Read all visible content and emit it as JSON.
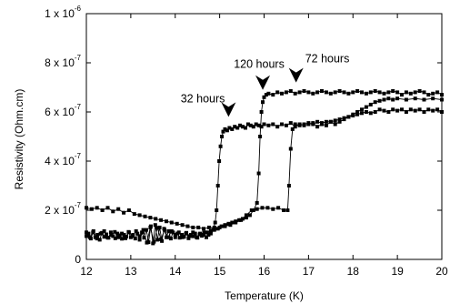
{
  "chart_data": {
    "type": "scatter",
    "title": "",
    "xlabel": "Temperature (K)",
    "ylabel": "Resistivity (Ohm.cm)",
    "xlim": [
      12,
      20
    ],
    "ylim": [
      0,
      1e-06
    ],
    "x_ticks": [
      12,
      13,
      14,
      15,
      16,
      17,
      18,
      19,
      20
    ],
    "x_tick_labels": [
      "12",
      "13",
      "14",
      "15",
      "16",
      "17",
      "18",
      "19",
      "20"
    ],
    "y_ticks": [
      {
        "value": 0,
        "mantissa": "0",
        "exponent": ""
      },
      {
        "value": 2e-07,
        "mantissa": "2 x 10",
        "exponent": "-7"
      },
      {
        "value": 4e-07,
        "mantissa": "4 x 10",
        "exponent": "-7"
      },
      {
        "value": 6e-07,
        "mantissa": "6 x 10",
        "exponent": "-7"
      },
      {
        "value": 8e-07,
        "mantissa": "8 x 10",
        "exponent": "-7"
      },
      {
        "value": 1e-06,
        "mantissa": "1 x 10",
        "exponent": "-6"
      }
    ],
    "grid": false,
    "legend": "none",
    "series": [
      {
        "marker": "square",
        "points": [
          [
            12.0,
            9.5e-08
          ],
          [
            12.05,
            1.05e-07
          ],
          [
            12.1,
            8.5e-08
          ],
          [
            12.15,
            1.1e-07
          ],
          [
            12.2,
            9e-08
          ],
          [
            12.25,
            1e-07
          ],
          [
            12.3,
            8e-08
          ],
          [
            12.35,
            1.08e-07
          ],
          [
            12.4,
            9.2e-08
          ],
          [
            12.45,
            1.02e-07
          ],
          [
            12.5,
            8.8e-08
          ],
          [
            12.55,
            1.1e-07
          ],
          [
            12.6,
            9.5e-08
          ],
          [
            12.65,
            8.6e-08
          ],
          [
            12.7,
            1.05e-07
          ],
          [
            12.75,
            9.8e-08
          ],
          [
            12.8,
            8.4e-08
          ],
          [
            12.85,
            1e-07
          ],
          [
            12.9,
            9.3e-08
          ],
          [
            12.95,
            1.12e-07
          ],
          [
            13.0,
            9e-08
          ],
          [
            13.05,
            1e-07
          ],
          [
            13.1,
            8.5e-08
          ],
          [
            13.15,
            1.05e-07
          ],
          [
            13.2,
            9.5e-08
          ],
          [
            13.25,
            1.1e-07
          ],
          [
            13.3,
            8.8e-08
          ],
          [
            13.35,
            1.2e-07
          ],
          [
            13.4,
            7e-08
          ],
          [
            13.45,
            1.35e-07
          ],
          [
            13.5,
            6.5e-08
          ],
          [
            13.55,
            1.4e-07
          ],
          [
            13.6,
            8e-08
          ],
          [
            13.65,
            1.3e-07
          ],
          [
            13.7,
            7.5e-08
          ],
          [
            13.75,
            1.25e-07
          ],
          [
            13.8,
            9e-08
          ],
          [
            13.85,
            1.15e-07
          ],
          [
            13.9,
            8.5e-08
          ],
          [
            13.95,
            1.1e-07
          ],
          [
            14.0,
            9e-08
          ],
          [
            14.05,
            1.05e-07
          ],
          [
            14.1,
            8.8e-08
          ],
          [
            14.15,
            1e-07
          ],
          [
            14.2,
            9.2e-08
          ],
          [
            14.25,
            1.08e-07
          ],
          [
            14.3,
            8.6e-08
          ],
          [
            14.35,
            1e-07
          ],
          [
            14.4,
            9.4e-08
          ],
          [
            14.45,
            1.05e-07
          ],
          [
            14.5,
            8.8e-08
          ],
          [
            14.55,
            1.02e-07
          ],
          [
            14.6,
            9.6e-08
          ],
          [
            14.65,
            1.1e-07
          ],
          [
            14.7,
            9e-08
          ],
          [
            14.75,
            1e-07
          ],
          [
            14.8,
            1.05e-07
          ],
          [
            14.85,
            1.2e-07
          ],
          [
            14.9,
            1.5e-07
          ],
          [
            14.93,
            2e-07
          ],
          [
            14.96,
            3e-07
          ],
          [
            14.99,
            4e-07
          ],
          [
            15.02,
            4.6e-07
          ],
          [
            15.05,
            5e-07
          ],
          [
            15.08,
            5.2e-07
          ],
          [
            15.12,
            5.3e-07
          ],
          [
            15.17,
            5.25e-07
          ],
          [
            15.22,
            5.35e-07
          ],
          [
            15.28,
            5.3e-07
          ],
          [
            15.34,
            5.4e-07
          ],
          [
            15.4,
            5.35e-07
          ],
          [
            15.46,
            5.45e-07
          ],
          [
            15.52,
            5.4e-07
          ],
          [
            15.58,
            5.35e-07
          ],
          [
            15.64,
            5.5e-07
          ],
          [
            15.7,
            5.45e-07
          ],
          [
            15.76,
            5.4e-07
          ],
          [
            15.82,
            5.5e-07
          ],
          [
            15.88,
            5.45e-07
          ],
          [
            15.94,
            5.4e-07
          ],
          [
            16.0,
            5.5e-07
          ],
          [
            16.1,
            5.45e-07
          ],
          [
            16.2,
            5.5e-07
          ],
          [
            16.3,
            5.4e-07
          ],
          [
            16.4,
            5.5e-07
          ],
          [
            16.5,
            5.45e-07
          ],
          [
            16.6,
            5.55e-07
          ],
          [
            16.7,
            5.4e-07
          ],
          [
            16.8,
            5.5e-07
          ],
          [
            16.9,
            5.45e-07
          ],
          [
            17.0,
            5.5e-07
          ],
          [
            17.1,
            5.55e-07
          ],
          [
            17.2,
            5.4e-07
          ],
          [
            17.3,
            5.5e-07
          ],
          [
            17.4,
            5.45e-07
          ],
          [
            17.5,
            5.6e-07
          ],
          [
            17.6,
            5.5e-07
          ],
          [
            17.7,
            5.6e-07
          ],
          [
            17.8,
            5.7e-07
          ],
          [
            17.9,
            5.8e-07
          ],
          [
            18.0,
            5.85e-07
          ],
          [
            18.1,
            5.9e-07
          ],
          [
            18.2,
            5.95e-07
          ],
          [
            18.3,
            6e-07
          ],
          [
            18.4,
            5.95e-07
          ],
          [
            18.5,
            6e-07
          ],
          [
            18.6,
            6.1e-07
          ],
          [
            18.7,
            6.05e-07
          ],
          [
            18.8,
            6e-07
          ],
          [
            18.9,
            6.1e-07
          ],
          [
            19.0,
            6.05e-07
          ],
          [
            19.1,
            6.1e-07
          ],
          [
            19.2,
            6e-07
          ],
          [
            19.3,
            6.1e-07
          ],
          [
            19.4,
            6.05e-07
          ],
          [
            19.5,
            6.1e-07
          ],
          [
            19.6,
            6e-07
          ],
          [
            19.7,
            6.1e-07
          ],
          [
            19.8,
            6.05e-07
          ],
          [
            19.9,
            6.1e-07
          ],
          [
            20.0,
            6e-07
          ]
        ]
      },
      {
        "marker": "square",
        "points": [
          [
            12.0,
            1.1e-07
          ],
          [
            12.08,
            9e-08
          ],
          [
            12.16,
            1.15e-07
          ],
          [
            12.24,
            8.5e-08
          ],
          [
            12.32,
            1.05e-07
          ],
          [
            12.4,
            1.15e-07
          ],
          [
            12.48,
            8.8e-08
          ],
          [
            12.56,
            1e-07
          ],
          [
            12.64,
            1.12e-07
          ],
          [
            12.72,
            9e-08
          ],
          [
            12.8,
            1.05e-07
          ],
          [
            12.88,
            8.6e-08
          ],
          [
            12.96,
            1.1e-07
          ],
          [
            13.04,
            9.5e-08
          ],
          [
            13.12,
            1.15e-07
          ],
          [
            13.2,
            8e-08
          ],
          [
            13.28,
            1.2e-07
          ],
          [
            13.36,
            6.8e-08
          ],
          [
            13.44,
            1.3e-07
          ],
          [
            13.52,
            7.2e-08
          ],
          [
            13.6,
            1.28e-07
          ],
          [
            13.68,
            8.2e-08
          ],
          [
            13.76,
            1.2e-07
          ],
          [
            13.84,
            9e-08
          ],
          [
            13.92,
            1.15e-07
          ],
          [
            14.0,
            1e-07
          ],
          [
            14.08,
            1.1e-07
          ],
          [
            14.16,
            9e-08
          ],
          [
            14.24,
            1.05e-07
          ],
          [
            14.32,
            9.5e-08
          ],
          [
            14.4,
            1.1e-07
          ],
          [
            14.48,
            9e-08
          ],
          [
            14.56,
            1.05e-07
          ],
          [
            14.64,
            1e-07
          ],
          [
            14.72,
            1.1e-07
          ],
          [
            14.8,
            1.15e-07
          ],
          [
            14.88,
            1.2e-07
          ],
          [
            14.96,
            1.25e-07
          ],
          [
            15.04,
            1.35e-07
          ],
          [
            15.12,
            1.4e-07
          ],
          [
            15.2,
            1.45e-07
          ],
          [
            15.28,
            1.5e-07
          ],
          [
            15.36,
            1.55e-07
          ],
          [
            15.44,
            1.6e-07
          ],
          [
            15.52,
            1.65e-07
          ],
          [
            15.6,
            1.7e-07
          ],
          [
            15.68,
            1.8e-07
          ],
          [
            15.76,
            2e-07
          ],
          [
            15.84,
            2.3e-07
          ],
          [
            15.88,
            3.5e-07
          ],
          [
            15.91,
            5e-07
          ],
          [
            15.94,
            6e-07
          ],
          [
            15.97,
            6.4e-07
          ],
          [
            16.0,
            6.6e-07
          ],
          [
            16.05,
            6.7e-07
          ],
          [
            16.1,
            6.75e-07
          ],
          [
            16.2,
            6.7e-07
          ],
          [
            16.3,
            6.8e-07
          ],
          [
            16.4,
            6.75e-07
          ],
          [
            16.5,
            6.8e-07
          ],
          [
            16.6,
            6.85e-07
          ],
          [
            16.7,
            6.75e-07
          ],
          [
            16.8,
            6.8e-07
          ],
          [
            16.9,
            6.85e-07
          ],
          [
            17.0,
            6.8e-07
          ],
          [
            17.1,
            6.75e-07
          ],
          [
            17.2,
            6.8e-07
          ],
          [
            17.3,
            6.85e-07
          ],
          [
            17.4,
            6.8e-07
          ],
          [
            17.5,
            6.75e-07
          ],
          [
            17.6,
            6.8e-07
          ],
          [
            17.7,
            6.85e-07
          ],
          [
            17.8,
            6.8e-07
          ],
          [
            17.9,
            6.75e-07
          ],
          [
            18.0,
            6.8e-07
          ],
          [
            18.1,
            6.85e-07
          ],
          [
            18.2,
            6.8e-07
          ],
          [
            18.3,
            6.75e-07
          ],
          [
            18.4,
            6.8e-07
          ],
          [
            18.5,
            6.85e-07
          ],
          [
            18.6,
            6.8e-07
          ],
          [
            18.7,
            6.75e-07
          ],
          [
            18.8,
            6.8e-07
          ],
          [
            18.9,
            6.85e-07
          ],
          [
            19.0,
            6.8e-07
          ],
          [
            19.1,
            6.7e-07
          ],
          [
            19.2,
            6.8e-07
          ],
          [
            19.3,
            6.75e-07
          ],
          [
            19.4,
            6.8e-07
          ],
          [
            19.5,
            6.85e-07
          ],
          [
            19.6,
            6.8e-07
          ],
          [
            19.7,
            6.7e-07
          ],
          [
            19.8,
            6.75e-07
          ],
          [
            19.9,
            6.8e-07
          ],
          [
            20.0,
            6.7e-07
          ]
        ]
      },
      {
        "marker": "square",
        "points": [
          [
            12.0,
            2.1e-07
          ],
          [
            12.12,
            2.05e-07
          ],
          [
            12.24,
            2.1e-07
          ],
          [
            12.36,
            2e-07
          ],
          [
            12.48,
            2.1e-07
          ],
          [
            12.6,
            1.95e-07
          ],
          [
            12.72,
            2.05e-07
          ],
          [
            12.84,
            1.9e-07
          ],
          [
            12.96,
            2e-07
          ],
          [
            13.08,
            1.85e-07
          ],
          [
            13.2,
            1.8e-07
          ],
          [
            13.32,
            1.75e-07
          ],
          [
            13.44,
            1.7e-07
          ],
          [
            13.56,
            1.65e-07
          ],
          [
            13.68,
            1.6e-07
          ],
          [
            13.8,
            1.55e-07
          ],
          [
            13.92,
            1.5e-07
          ],
          [
            14.04,
            1.45e-07
          ],
          [
            14.16,
            1.4e-07
          ],
          [
            14.28,
            1.35e-07
          ],
          [
            14.4,
            1.3e-07
          ],
          [
            14.52,
            1.3e-07
          ],
          [
            14.64,
            1.25e-07
          ],
          [
            14.76,
            1.3e-07
          ],
          [
            14.88,
            1.3e-07
          ],
          [
            15.0,
            1.3e-07
          ],
          [
            15.12,
            1.35e-07
          ],
          [
            15.24,
            1.4e-07
          ],
          [
            15.36,
            1.5e-07
          ],
          [
            15.48,
            1.6e-07
          ],
          [
            15.6,
            1.8e-07
          ],
          [
            15.72,
            2e-07
          ],
          [
            15.84,
            2.05e-07
          ],
          [
            15.96,
            2.1e-07
          ],
          [
            16.08,
            2.1e-07
          ],
          [
            16.2,
            2.05e-07
          ],
          [
            16.32,
            2.1e-07
          ],
          [
            16.44,
            2e-07
          ],
          [
            16.53,
            2e-07
          ],
          [
            16.56,
            3e-07
          ],
          [
            16.6,
            4.5e-07
          ],
          [
            16.64,
            5.3e-07
          ],
          [
            16.7,
            5.5e-07
          ],
          [
            16.8,
            5.45e-07
          ],
          [
            16.9,
            5.5e-07
          ],
          [
            17.0,
            5.55e-07
          ],
          [
            17.1,
            5.5e-07
          ],
          [
            17.2,
            5.6e-07
          ],
          [
            17.3,
            5.55e-07
          ],
          [
            17.4,
            5.6e-07
          ],
          [
            17.5,
            5.6e-07
          ],
          [
            17.6,
            5.65e-07
          ],
          [
            17.7,
            5.7e-07
          ],
          [
            17.8,
            5.75e-07
          ],
          [
            17.9,
            5.8e-07
          ],
          [
            18.0,
            5.9e-07
          ],
          [
            18.1,
            6e-07
          ],
          [
            18.2,
            6.1e-07
          ],
          [
            18.3,
            6.2e-07
          ],
          [
            18.4,
            6.3e-07
          ],
          [
            18.5,
            6.4e-07
          ],
          [
            18.6,
            6.45e-07
          ],
          [
            18.7,
            6.5e-07
          ],
          [
            18.8,
            6.55e-07
          ],
          [
            18.9,
            6.5e-07
          ],
          [
            19.0,
            6.55e-07
          ],
          [
            19.2,
            6.5e-07
          ],
          [
            19.4,
            6.55e-07
          ],
          [
            19.6,
            6.5e-07
          ],
          [
            19.8,
            6.55e-07
          ],
          [
            20.0,
            6.5e-07
          ]
        ]
      }
    ],
    "annotations": [
      {
        "text": "32 hours",
        "arrow_x": 15.2,
        "arrow_y": 5.8e-07
      },
      {
        "text": "120 hours",
        "arrow_x": 15.97,
        "arrow_y": 6.9e-07
      },
      {
        "text": "72 hours",
        "arrow_x": 16.72,
        "arrow_y": 7.2e-07
      }
    ]
  }
}
